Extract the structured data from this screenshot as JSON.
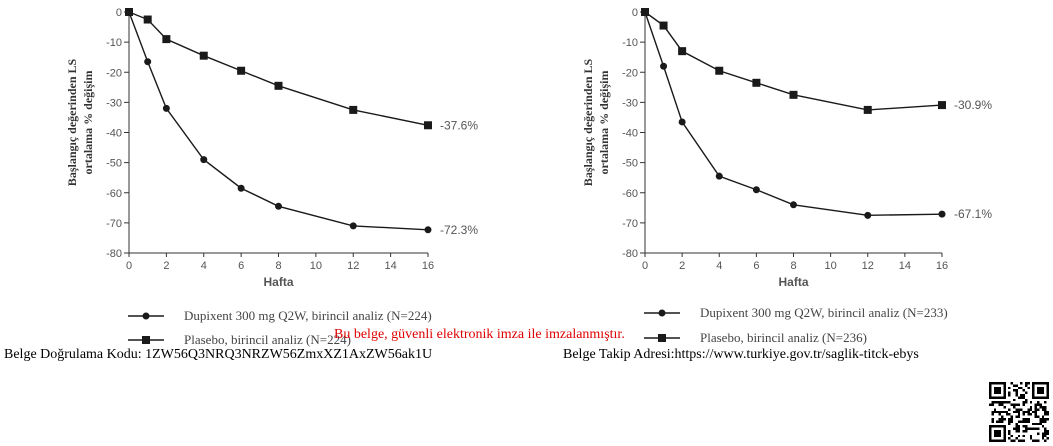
{
  "chart_data": [
    {
      "type": "line",
      "ylabel_line1": "Başlangıç değerinden LS",
      "ylabel_line2": "ortalama % değişim",
      "xlabel": "Hafta",
      "xlim": [
        0,
        16
      ],
      "ylim": [
        -80,
        0
      ],
      "xticks": [
        0,
        2,
        4,
        6,
        8,
        10,
        12,
        14,
        16
      ],
      "yticks": [
        0,
        -10,
        -20,
        -30,
        -40,
        -50,
        -60,
        -70,
        -80
      ],
      "grid": false,
      "legend_position": "bottom",
      "series": [
        {
          "name": "Dupixent 300 mg  Q2W, birincil analiz (N=224)",
          "marker": "circle",
          "x": [
            0,
            1,
            2,
            4,
            6,
            8,
            12,
            16
          ],
          "values": [
            0,
            -16.5,
            -32,
            -49,
            -58.5,
            -64.5,
            -71,
            -72.3
          ],
          "end_label": "-72.3%"
        },
        {
          "name": "Plasebo, birincil  analiz (N=224)",
          "marker": "square",
          "x": [
            0,
            1,
            2,
            4,
            6,
            8,
            12,
            16
          ],
          "values": [
            0,
            -2.5,
            -9,
            -14.5,
            -19.5,
            -24.5,
            -32.5,
            -37.6
          ],
          "end_label": "-37.6%"
        }
      ]
    },
    {
      "type": "line",
      "ylabel_line1": "Başlangıç değerinden LS",
      "ylabel_line2": "ortalama % değişim",
      "xlabel": "Hafta",
      "xlim": [
        0,
        16
      ],
      "ylim": [
        -80,
        0
      ],
      "xticks": [
        0,
        2,
        4,
        6,
        8,
        10,
        12,
        14,
        16
      ],
      "yticks": [
        0,
        -10,
        -20,
        -30,
        -40,
        -50,
        -60,
        -70,
        -80
      ],
      "grid": false,
      "legend_position": "bottom",
      "series": [
        {
          "name": "Dupixent 300 mg Q2W, birincil analiz (N=233)",
          "marker": "circle",
          "x": [
            0,
            1,
            2,
            4,
            6,
            8,
            12,
            16
          ],
          "values": [
            0,
            -18,
            -36.5,
            -54.5,
            -59,
            -64,
            -67.5,
            -67.1
          ],
          "end_label": "-67.1%"
        },
        {
          "name": "Plasebo, birincil  analiz (N=236)",
          "marker": "square",
          "x": [
            0,
            1,
            2,
            4,
            6,
            8,
            12,
            16
          ],
          "values": [
            0,
            -4.5,
            -13,
            -19.5,
            -23.5,
            -27.5,
            -32.5,
            -30.9
          ],
          "end_label": "-30.9%"
        }
      ]
    }
  ],
  "footer": {
    "signature_note": "Bu belge, güvenli elektronik imza ile imzalanmıştır.",
    "verify_code": "Belge Doğrulama Kodu: 1ZW56Q3NRQ3NRZW56ZmxXZ1AxZW56ak1U",
    "tracking_address": "Belge Takip Adresi:https://www.turkiye.gov.tr/saglik-titck-ebys"
  },
  "colors": {
    "line": "#1a1a1a",
    "axis_text": "#555555",
    "signature": "#e00000"
  }
}
